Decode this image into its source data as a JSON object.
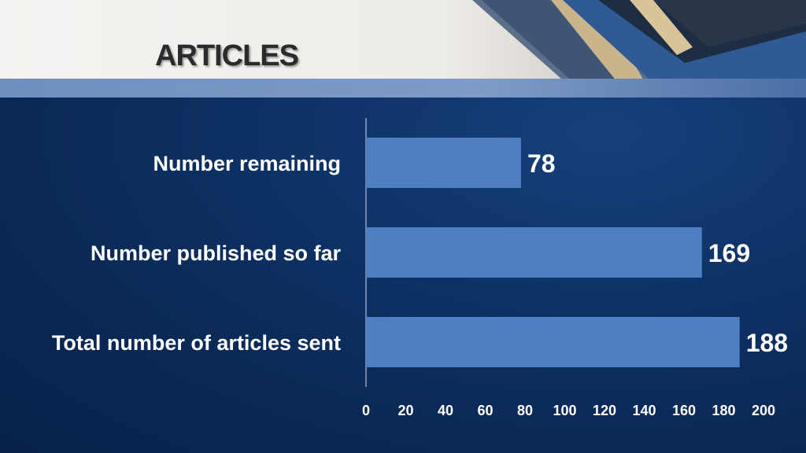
{
  "slide": {
    "title": "ARTICLES"
  },
  "colors": {
    "bar": "#4f7fc0",
    "background": "#0b2a57",
    "text": "#ffffff"
  },
  "chart_data": {
    "type": "bar",
    "orientation": "horizontal",
    "categories": [
      "Number remaining",
      "Number published so far",
      "Total number of articles sent"
    ],
    "values": [
      78,
      169,
      188
    ],
    "xlim": [
      0,
      200
    ],
    "xticks": [
      0,
      20,
      40,
      60,
      80,
      100,
      120,
      140,
      160,
      180,
      200
    ],
    "data_labels": true,
    "grid": false,
    "legend": "none"
  }
}
